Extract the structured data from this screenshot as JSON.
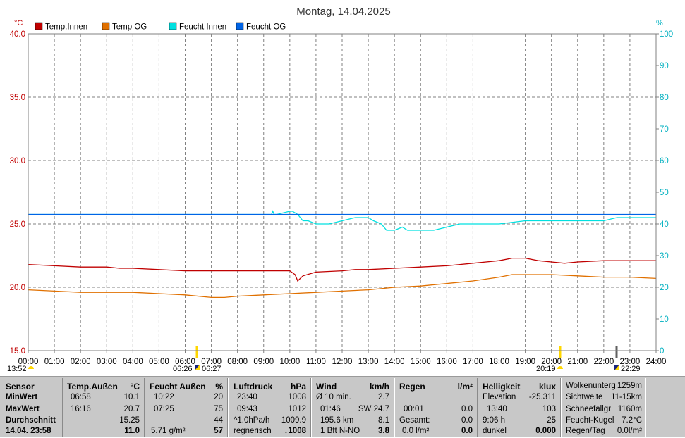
{
  "title": "Montag, 14.04.2025",
  "chart_data": {
    "type": "line",
    "title": "Montag, 14.04.2025",
    "y_left_unit": "°C",
    "y_right_unit": "%",
    "ylim_left": [
      15,
      40
    ],
    "ylim_right": [
      0,
      100
    ],
    "yticks_left": [
      "15.0",
      "20.0",
      "25.0",
      "30.0",
      "35.0",
      "40.0"
    ],
    "yticks_right": [
      "0",
      "10",
      "20",
      "30",
      "40",
      "50",
      "60",
      "70",
      "80",
      "90",
      "100"
    ],
    "xlim_hours": [
      0,
      24
    ],
    "xticks": [
      "00:00",
      "01:00",
      "02:00",
      "03:00",
      "04:00",
      "05:00",
      "06:00",
      "07:00",
      "08:00",
      "09:00",
      "10:00",
      "11:00",
      "12:00",
      "13:00",
      "14:00",
      "15:00",
      "16:00",
      "17:00",
      "18:00",
      "19:00",
      "20:00",
      "21:00",
      "22:00",
      "23:00",
      "24:00"
    ],
    "grid": true,
    "legend_position": "top-left",
    "series": [
      {
        "name": "Temp.Innen",
        "axis": "left",
        "color": "#c00000",
        "x": [
          0,
          1,
          2,
          3,
          3.5,
          4,
          5,
          6,
          7,
          8,
          9,
          10,
          10.2,
          10.3,
          10.5,
          11,
          12,
          12.5,
          13,
          14,
          15,
          16,
          16.5,
          17,
          17.5,
          18,
          18.5,
          19,
          19.5,
          20,
          20.5,
          21,
          22,
          23,
          24
        ],
        "y": [
          21.8,
          21.7,
          21.6,
          21.6,
          21.5,
          21.5,
          21.4,
          21.3,
          21.3,
          21.3,
          21.3,
          21.3,
          21.0,
          20.5,
          20.9,
          21.2,
          21.3,
          21.4,
          21.4,
          21.5,
          21.6,
          21.7,
          21.8,
          21.9,
          22.0,
          22.1,
          22.3,
          22.3,
          22.1,
          22.0,
          21.9,
          22.0,
          22.1,
          22.1,
          22.1
        ]
      },
      {
        "name": "Temp OG",
        "axis": "left",
        "color": "#e07000",
        "x": [
          0,
          1,
          2,
          3,
          4,
          5,
          6,
          7,
          7.5,
          8,
          9,
          10,
          11,
          12,
          13,
          14,
          15,
          16,
          17,
          18,
          18.5,
          19,
          20,
          21,
          22,
          23,
          24
        ],
        "y": [
          19.8,
          19.7,
          19.6,
          19.6,
          19.6,
          19.5,
          19.4,
          19.2,
          19.2,
          19.3,
          19.4,
          19.5,
          19.6,
          19.7,
          19.8,
          20.0,
          20.1,
          20.3,
          20.5,
          20.8,
          21.0,
          21.0,
          21.0,
          20.9,
          20.8,
          20.8,
          20.7
        ]
      },
      {
        "name": "Feucht Innen",
        "axis": "right",
        "color": "#00e0e0",
        "x": [
          0,
          9.3,
          9.35,
          9.4,
          9.5,
          10.0,
          10.1,
          10.3,
          10.5,
          10.7,
          11,
          11.5,
          12,
          12.5,
          13,
          13.2,
          13.5,
          13.7,
          14,
          14.3,
          14.5,
          15,
          15.5,
          16,
          16.5,
          17,
          18,
          19,
          20,
          21,
          22,
          22.5,
          23,
          24
        ],
        "y": [
          43,
          43,
          44,
          43,
          43,
          44,
          44,
          43,
          41,
          41,
          40,
          40,
          41,
          42,
          42,
          41,
          40,
          38,
          38,
          39,
          38,
          38,
          38,
          39,
          40,
          40,
          40,
          41,
          41,
          41,
          41,
          42,
          42,
          42
        ]
      },
      {
        "name": "Feucht OG",
        "axis": "right",
        "color": "#0064e6",
        "x": [
          0,
          24
        ],
        "y": [
          43,
          43
        ]
      }
    ],
    "markers": [
      {
        "label": "13:52",
        "kind": "moonrise"
      },
      {
        "label": "06:26",
        "kind": "sunrise"
      },
      {
        "label": "06:27",
        "kind": "dawn"
      },
      {
        "label": "20:19",
        "kind": "sunset"
      },
      {
        "label": "22:29",
        "kind": "moonset"
      }
    ]
  },
  "panel": {
    "sensor": {
      "header": "Sensor",
      "min": "MinWert",
      "max": "MaxWert",
      "avg": "Durchschnitt",
      "now": "14.04.  23:58"
    },
    "temp": {
      "header": "Temp.Außen",
      "unit": "°C",
      "min_time": "06:58",
      "min": "10.1",
      "max_time": "16:16",
      "max": "20.7",
      "avg": "15.25",
      "now": "11.0"
    },
    "humid": {
      "header": "Feucht Außen",
      "unit": "%",
      "min_time": "10:22",
      "min": "20",
      "max_time": "07:25",
      "max": "75",
      "avg": "44",
      "abs": "5.71 g/m²",
      "now": "57"
    },
    "press": {
      "header": "Luftdruck",
      "unit": "hPa",
      "min_time": "23:40",
      "min": "1008",
      "max_time": "09:43",
      "max": "1012",
      "trend_lbl": "^1.0hPa/h",
      "trend": "1009.9",
      "forecast": "regnerisch",
      "now": "↓1008"
    },
    "wind": {
      "header": "Wind",
      "unit": "km/h",
      "avg_lbl": "Ø 10 min.",
      "avg": "2.7",
      "gust_time": "01:46",
      "gust": "SW 24.7",
      "dist": "195.6 km",
      "dist_val": "8.1",
      "bft": "1 Bft N-NO",
      "now": "3.8"
    },
    "rain": {
      "header": "Regen",
      "unit": "l/m²",
      "time": "00:01",
      "val": "0.0",
      "total_lbl": "Gesamt:",
      "total": "0.0",
      "rate": "0.0 l/m²",
      "now": "0.0"
    },
    "light": {
      "header": "Helligkeit",
      "unit": "klux",
      "elev_lbl": "Elevation",
      "elev": "-25.311",
      "max_time": "13:40",
      "max": "103",
      "dur": "9:06 h",
      "dur_val": "25",
      "state": "dunkel",
      "now": "0.000"
    },
    "misc": {
      "cloud_lbl": "Wolkenunterg",
      "cloud": "1259m",
      "vis_lbl": "Sichtweite",
      "vis": "11-15km",
      "snow_lbl": "Schneefallgr",
      "snow": "1160m",
      "wet_lbl": "Feucht-Kugel",
      "wet": "7.2°C",
      "rain_lbl": "Regen/Tag",
      "rain": "0.0l/m²"
    }
  }
}
